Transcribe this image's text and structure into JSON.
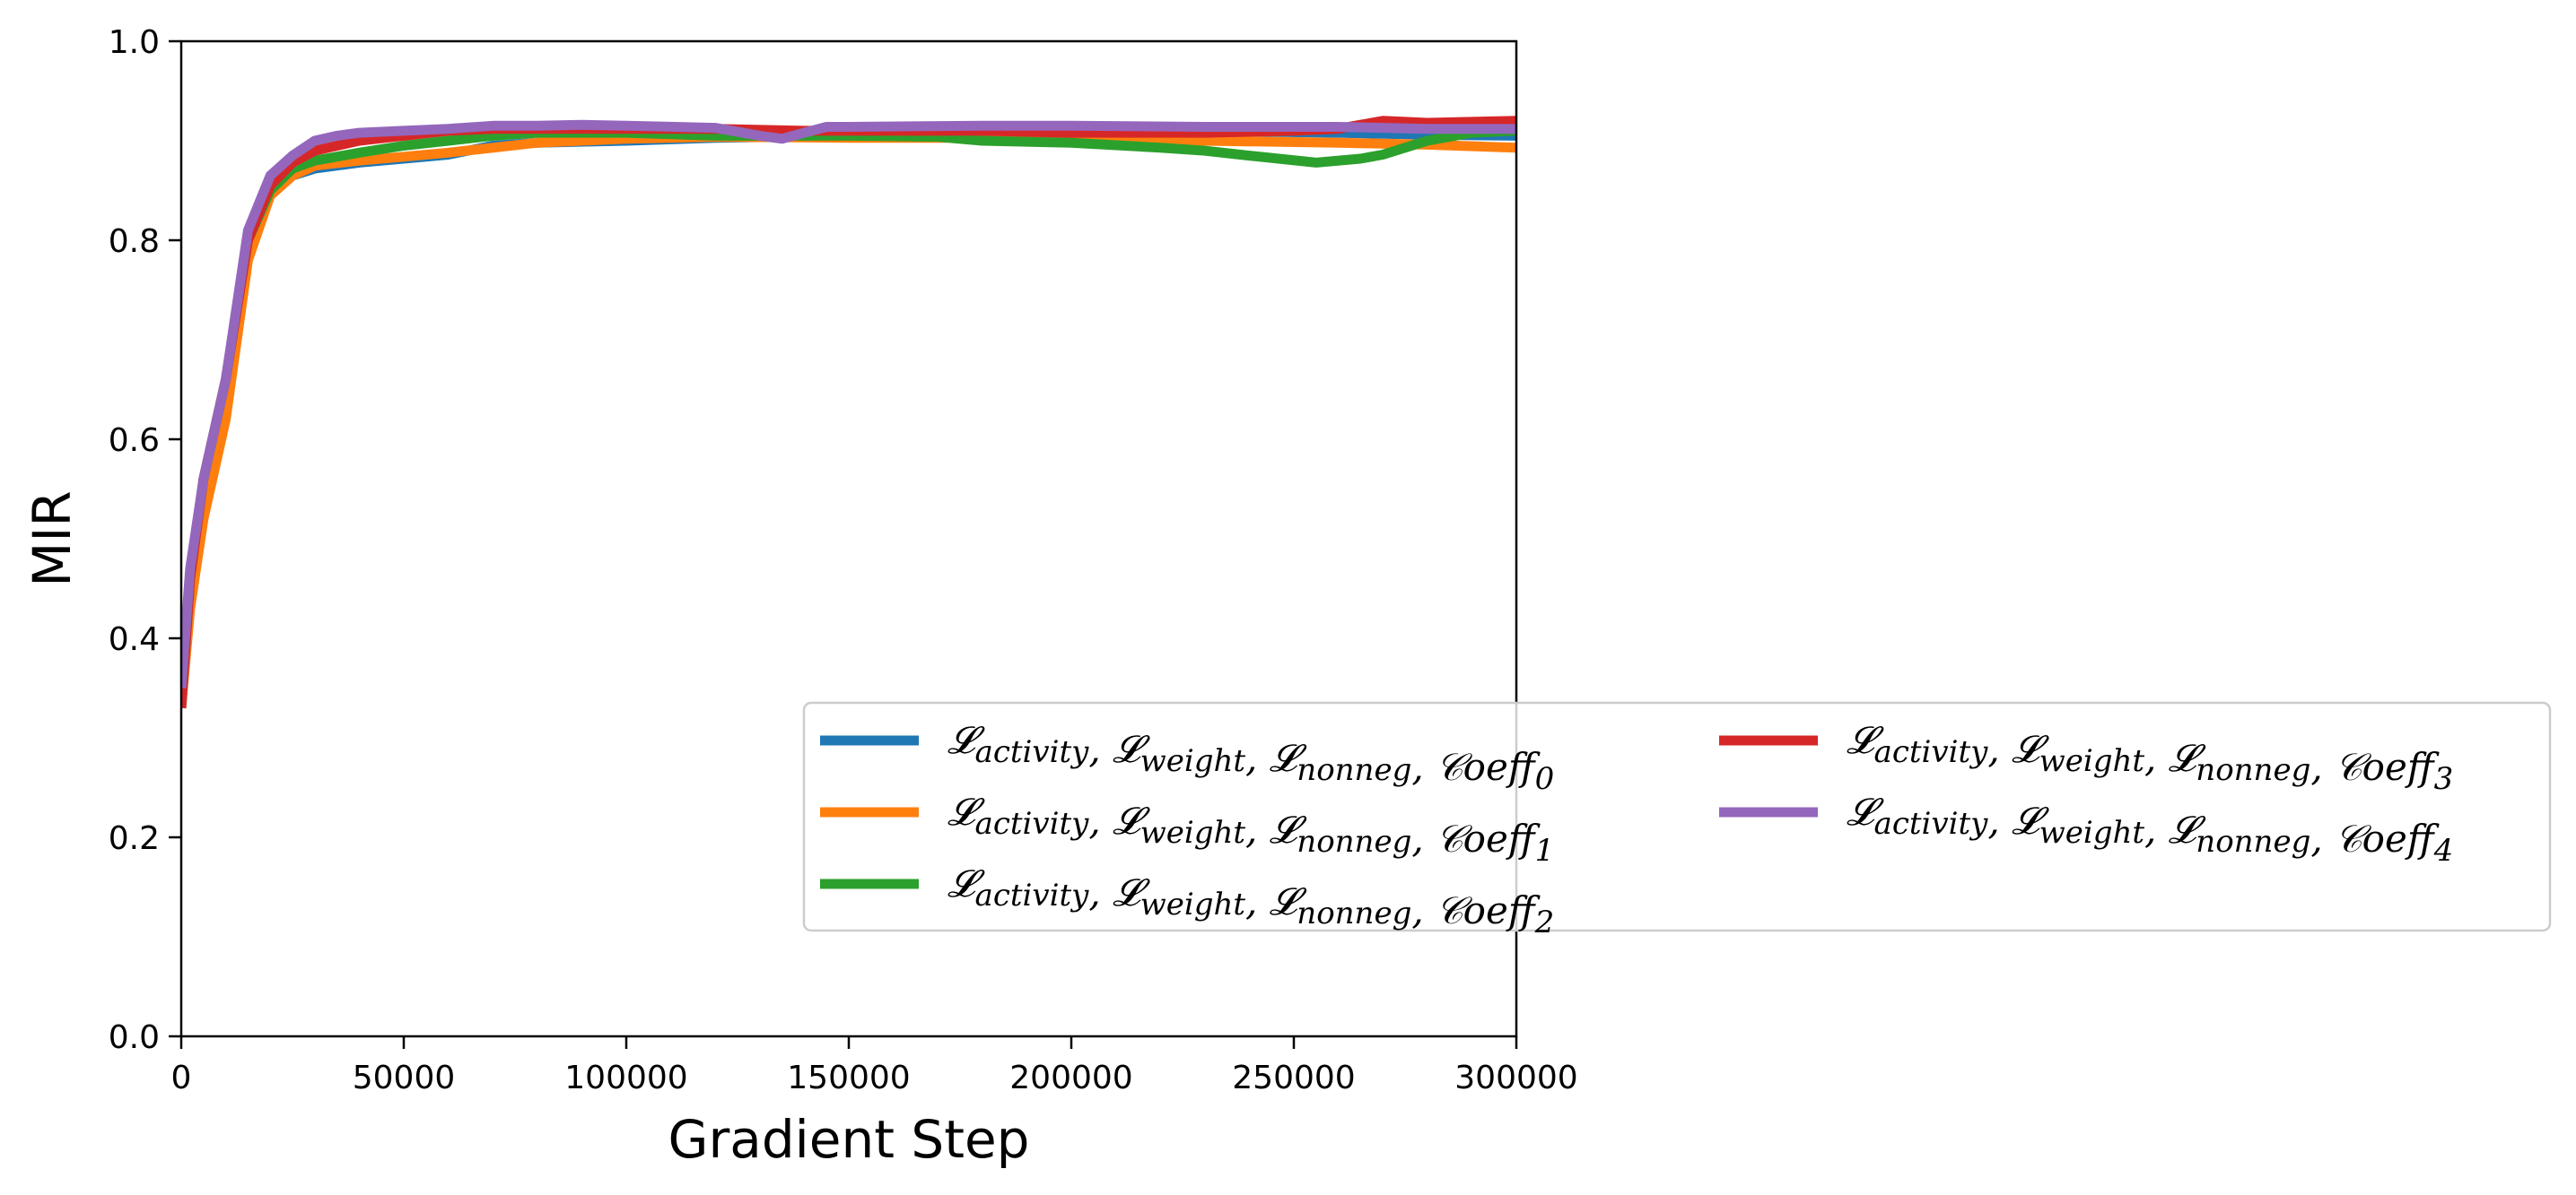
{
  "chart_data": {
    "type": "line",
    "title": "",
    "xlabel": "Gradient Step",
    "ylabel": "MIR",
    "xlim": [
      0,
      300000
    ],
    "ylim": [
      0.0,
      1.0
    ],
    "xticks": [
      0,
      50000,
      100000,
      150000,
      200000,
      250000,
      300000
    ],
    "xtick_labels": [
      "0",
      "50000",
      "100000",
      "150000",
      "200000",
      "250000",
      "300000"
    ],
    "yticks": [
      0.0,
      0.2,
      0.4,
      0.6,
      0.8,
      1.0
    ],
    "ytick_labels": [
      "0.0",
      "0.2",
      "0.4",
      "0.6",
      "0.8",
      "1.0"
    ],
    "grid": false,
    "legend_position": "lower-right (extends beyond axes)",
    "legend_columns": 2,
    "series": [
      {
        "name": "𝓛activity, 𝓛weight, 𝓛nonneg, 𝓒oeff0",
        "color": "#1f77b4",
        "x": [
          0,
          2000,
          5000,
          10000,
          15000,
          20000,
          25000,
          30000,
          40000,
          50000,
          60000,
          70000,
          80000,
          100000,
          120000,
          150000,
          180000,
          200000,
          230000,
          260000,
          280000,
          300000
        ],
        "y": [
          0.33,
          0.45,
          0.55,
          0.65,
          0.79,
          0.845,
          0.865,
          0.872,
          0.878,
          0.882,
          0.886,
          0.895,
          0.898,
          0.9,
          0.903,
          0.905,
          0.908,
          0.91,
          0.91,
          0.908,
          0.906,
          0.905
        ]
      },
      {
        "name": "𝓛activity, 𝓛weight, 𝓛nonneg, 𝓒oeff1",
        "color": "#ff7f0e",
        "x": [
          0,
          2000,
          5000,
          10000,
          15000,
          20000,
          25000,
          30000,
          40000,
          50000,
          60000,
          70000,
          80000,
          100000,
          120000,
          150000,
          180000,
          200000,
          230000,
          260000,
          280000,
          300000
        ],
        "y": [
          0.33,
          0.43,
          0.52,
          0.62,
          0.78,
          0.845,
          0.865,
          0.875,
          0.88,
          0.884,
          0.888,
          0.893,
          0.898,
          0.902,
          0.904,
          0.903,
          0.903,
          0.902,
          0.9,
          0.898,
          0.896,
          0.893
        ]
      },
      {
        "name": "𝓛activity, 𝓛weight, 𝓛nonneg, 𝓒oeff2",
        "color": "#2ca02c",
        "x": [
          0,
          2000,
          5000,
          10000,
          15000,
          20000,
          25000,
          30000,
          40000,
          50000,
          60000,
          70000,
          80000,
          100000,
          120000,
          150000,
          170000,
          180000,
          200000,
          220000,
          230000,
          240000,
          255000,
          265000,
          270000,
          280000,
          290000,
          300000
        ],
        "y": [
          0.33,
          0.46,
          0.56,
          0.66,
          0.8,
          0.85,
          0.872,
          0.88,
          0.888,
          0.895,
          0.9,
          0.905,
          0.908,
          0.908,
          0.905,
          0.905,
          0.904,
          0.9,
          0.898,
          0.893,
          0.89,
          0.885,
          0.878,
          0.882,
          0.886,
          0.9,
          0.908,
          0.91
        ]
      },
      {
        "name": "𝓛activity, 𝓛weight, 𝓛nonneg, 𝓒oeff3",
        "color": "#d62728",
        "x": [
          0,
          2000,
          5000,
          10000,
          15000,
          20000,
          25000,
          30000,
          40000,
          50000,
          60000,
          70000,
          80000,
          100000,
          120000,
          140000,
          150000,
          180000,
          200000,
          230000,
          250000,
          260000,
          265000,
          270000,
          280000,
          300000
        ],
        "y": [
          0.33,
          0.46,
          0.56,
          0.66,
          0.8,
          0.855,
          0.878,
          0.89,
          0.9,
          0.905,
          0.91,
          0.912,
          0.912,
          0.912,
          0.912,
          0.91,
          0.91,
          0.91,
          0.908,
          0.908,
          0.91,
          0.912,
          0.916,
          0.92,
          0.918,
          0.92
        ]
      },
      {
        "name": "𝓛activity, 𝓛weight, 𝓛nonneg, 𝓒oeff4",
        "color": "#9467bd",
        "x": [
          0,
          2000,
          5000,
          10000,
          15000,
          20000,
          25000,
          30000,
          35000,
          40000,
          50000,
          60000,
          70000,
          80000,
          90000,
          100000,
          120000,
          130000,
          135000,
          140000,
          145000,
          150000,
          180000,
          200000,
          230000,
          260000,
          280000,
          300000
        ],
        "y": [
          0.35,
          0.47,
          0.56,
          0.66,
          0.81,
          0.865,
          0.885,
          0.9,
          0.905,
          0.908,
          0.91,
          0.912,
          0.915,
          0.915,
          0.916,
          0.915,
          0.913,
          0.905,
          0.902,
          0.908,
          0.914,
          0.914,
          0.915,
          0.915,
          0.914,
          0.914,
          0.912,
          0.912
        ]
      }
    ],
    "legend_entries": [
      {
        "base": "𝓛",
        "sub1": "activity",
        "sub2": "weight",
        "sub3": "nonneg",
        "coeff": "𝒞oeff",
        "idx": "0"
      },
      {
        "base": "𝓛",
        "sub1": "activity",
        "sub2": "weight",
        "sub3": "nonneg",
        "coeff": "𝒞oeff",
        "idx": "1"
      },
      {
        "base": "𝓛",
        "sub1": "activity",
        "sub2": "weight",
        "sub3": "nonneg",
        "coeff": "𝒞oeff",
        "idx": "2"
      },
      {
        "base": "𝓛",
        "sub1": "activity",
        "sub2": "weight",
        "sub3": "nonneg",
        "coeff": "𝒞oeff",
        "idx": "3"
      },
      {
        "base": "𝓛",
        "sub1": "activity",
        "sub2": "weight",
        "sub3": "nonneg",
        "coeff": "𝒞oeff",
        "idx": "4"
      }
    ]
  }
}
